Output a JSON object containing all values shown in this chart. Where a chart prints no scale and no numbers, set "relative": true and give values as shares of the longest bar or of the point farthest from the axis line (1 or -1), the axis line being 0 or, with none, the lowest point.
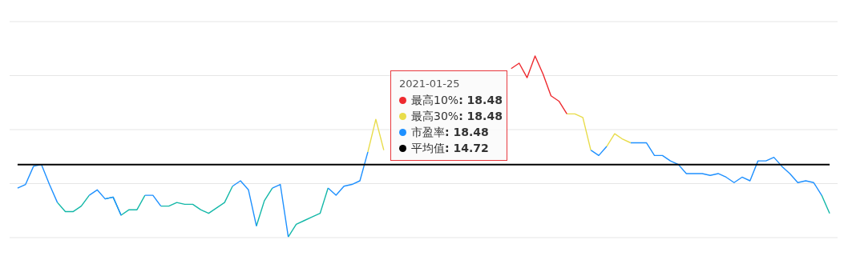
{
  "chart_data": {
    "type": "line",
    "relative": true,
    "grid": "y",
    "categories": [
      null,
      null,
      null,
      null,
      null,
      null,
      null,
      null,
      null,
      null,
      null,
      null,
      null,
      null,
      null,
      null,
      null,
      null,
      null,
      null,
      null,
      null,
      null,
      null,
      null,
      null,
      null,
      null,
      null,
      null,
      null,
      null,
      null,
      null,
      null,
      null,
      null,
      null,
      null,
      null,
      null,
      null,
      null,
      null,
      null,
      null,
      null,
      null,
      null,
      null,
      null,
      null,
      null,
      null,
      null,
      null,
      null,
      null,
      null,
      null,
      null,
      null,
      null,
      null,
      null,
      null,
      null,
      null,
      null,
      null,
      null,
      null,
      null,
      null,
      null,
      null,
      null,
      null,
      null,
      null,
      null,
      null,
      null,
      null,
      null,
      null,
      null,
      null,
      null,
      null,
      null,
      null,
      null,
      null,
      null,
      null,
      null,
      null,
      null,
      null,
      null,
      null,
      null
    ],
    "series": [
      {
        "name": "最高10%",
        "color": "#ee2a2f",
        "values": [
          null,
          null,
          null,
          null,
          null,
          null,
          null,
          null,
          null,
          null,
          null,
          null,
          null,
          null,
          null,
          null,
          null,
          null,
          null,
          null,
          null,
          null,
          null,
          null,
          null,
          null,
          null,
          null,
          null,
          null,
          null,
          null,
          null,
          null,
          null,
          null,
          null,
          null,
          null,
          null,
          null,
          null,
          null,
          null,
          null,
          null,
          null,
          null,
          null,
          null,
          null,
          null,
          null,
          null,
          null,
          null,
          null,
          null,
          null,
          null,
          null,
          null,
          0.93,
          0.96,
          0.88,
          1,
          0.9,
          0.78,
          0.75,
          0.68,
          null,
          null,
          null,
          null,
          null,
          null,
          null,
          null,
          null,
          null,
          null,
          null,
          null,
          null,
          null,
          null,
          null,
          null,
          null,
          null,
          null,
          null,
          null,
          null,
          null,
          null,
          null,
          null,
          null,
          null,
          null,
          null,
          null
        ]
      },
      {
        "name": "最高30%",
        "color": "#e8dc4a",
        "values": [
          null,
          null,
          null,
          null,
          null,
          null,
          null,
          null,
          null,
          null,
          null,
          null,
          null,
          null,
          null,
          null,
          null,
          null,
          null,
          null,
          null,
          null,
          null,
          null,
          null,
          null,
          null,
          null,
          null,
          null,
          null,
          null,
          null,
          null,
          null,
          null,
          null,
          null,
          null,
          null,
          null,
          null,
          null,
          null,
          0.47,
          0.65,
          0.48,
          null,
          null,
          null,
          null,
          null,
          null,
          null,
          null,
          null,
          null,
          null,
          null,
          null,
          null,
          null,
          null,
          null,
          null,
          null,
          null,
          null,
          null,
          0.68,
          0.68,
          0.66,
          0.48,
          null,
          0.5,
          0.57,
          0.54,
          0.52,
          null,
          null,
          null,
          null,
          null,
          null,
          null,
          null,
          null,
          null,
          null,
          null,
          null,
          null,
          null,
          null,
          null,
          null,
          null,
          null,
          null,
          null,
          null,
          null,
          null
        ]
      },
      {
        "name": "市盈率",
        "color": "#1e90ff",
        "values": [
          0.27,
          0.29,
          0.39,
          0.4,
          0.29,
          0.19,
          null,
          null,
          null,
          0.23,
          0.26,
          0.21,
          0.22,
          0.12,
          null,
          null,
          0.23,
          0.23,
          0.17,
          null,
          null,
          null,
          null,
          null,
          null,
          null,
          null,
          0.28,
          0.31,
          0.26,
          0.06,
          null,
          0.27,
          0.29,
          0,
          null,
          null,
          null,
          null,
          0.27,
          0.23,
          0.28,
          0.29,
          0.31,
          0.47,
          null,
          null,
          null,
          null,
          null,
          null,
          null,
          null,
          null,
          null,
          null,
          null,
          null,
          null,
          null,
          null,
          null,
          null,
          null,
          null,
          null,
          null,
          null,
          null,
          null,
          null,
          null,
          0.48,
          0.45,
          0.5,
          null,
          null,
          0.52,
          0.52,
          0.52,
          0.45,
          0.45,
          0.42,
          0.4,
          0.35,
          0.35,
          0.35,
          0.34,
          0.35,
          0.33,
          0.3,
          0.33,
          0.31,
          0.42,
          0.42,
          0.44,
          0.39,
          0.35,
          0.3,
          0.31,
          0.3,
          0.23,
          null
        ]
      },
      {
        "color": "#14b8a8",
        "values": [
          null,
          null,
          null,
          null,
          null,
          0.19,
          0.14,
          0.14,
          0.17,
          0.23,
          null,
          0.21,
          0.22,
          0.12,
          0.15,
          0.15,
          0.23,
          null,
          0.17,
          0.17,
          0.19,
          0.18,
          0.18,
          0.15,
          0.13,
          0.16,
          0.19,
          0.28,
          null,
          null,
          0.06,
          0.2,
          0.27,
          null,
          0,
          0.07,
          0.09,
          0.11,
          0.13,
          0.27,
          null,
          null,
          null,
          null,
          null,
          null,
          null,
          null,
          null,
          null,
          null,
          null,
          null,
          null,
          null,
          null,
          null,
          null,
          null,
          null,
          null,
          null,
          null,
          null,
          null,
          null,
          null,
          null,
          null,
          null,
          null,
          null,
          null,
          null,
          null,
          null,
          null,
          null,
          null,
          null,
          null,
          null,
          null,
          null,
          null,
          null,
          null,
          null,
          null,
          null,
          null,
          null,
          null,
          null,
          null,
          null,
          null,
          null,
          null,
          null,
          null,
          0.23,
          0.13
        ]
      }
    ],
    "ref_lines": [
      {
        "axis": "y",
        "value": 0.4,
        "label": "平均值",
        "color": "#000000"
      }
    ],
    "legend": "top",
    "annotations": [
      "2021-01-25",
      ": 18.48",
      ": 18.48",
      ": 18.48",
      ": 14.72"
    ]
  }
}
